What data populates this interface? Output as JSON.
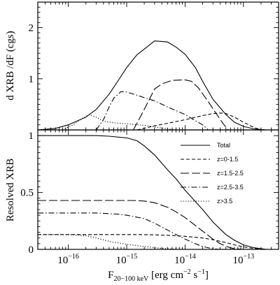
{
  "chart_data": [
    {
      "panel": "top",
      "type": "line",
      "ylabel": "d XRB /dF (cgs)",
      "xscale": "log",
      "xlim": [
        3e-17,
        4e-13
      ],
      "ylim": [
        0,
        2.5
      ],
      "yticks": [
        {
          "v": 1,
          "label": "1"
        },
        {
          "v": 2,
          "label": "2"
        }
      ],
      "series": [
        {
          "name": "Total",
          "dash": "solid",
          "points": [
            [
              3e-17,
              0.0
            ],
            [
              6e-17,
              0.03
            ],
            [
              1e-16,
              0.1
            ],
            [
              2e-16,
              0.25
            ],
            [
              3e-16,
              0.4
            ],
            [
              5e-16,
              0.7
            ],
            [
              7e-16,
              0.95
            ],
            [
              1e-15,
              1.22
            ],
            [
              1.5e-15,
              1.47
            ],
            [
              2e-15,
              1.58
            ],
            [
              3e-15,
              1.74
            ],
            [
              5e-15,
              1.72
            ],
            [
              7e-15,
              1.62
            ],
            [
              1e-14,
              1.48
            ],
            [
              1.5e-14,
              1.22
            ],
            [
              2e-14,
              0.95
            ],
            [
              3e-14,
              0.6
            ],
            [
              5e-14,
              0.3
            ],
            [
              7e-14,
              0.15
            ],
            [
              1e-13,
              0.07
            ],
            [
              1.5e-13,
              0.02
            ],
            [
              2.5e-13,
              0.0
            ]
          ]
        },
        {
          "name": "z=0-1.5",
          "dash": "short",
          "points": [
            [
              1.5e-15,
              0.0
            ],
            [
              3e-15,
              0.08
            ],
            [
              5e-15,
              0.13
            ],
            [
              1e-14,
              0.2
            ],
            [
              2e-14,
              0.28
            ],
            [
              3e-14,
              0.32
            ],
            [
              4e-14,
              0.33
            ],
            [
              5e-14,
              0.32
            ],
            [
              7e-14,
              0.25
            ],
            [
              1e-13,
              0.15
            ],
            [
              1.5e-13,
              0.05
            ],
            [
              2e-13,
              0.0
            ]
          ]
        },
        {
          "name": "z=1.5-2.5",
          "dash": "long",
          "points": [
            [
              1.3e-15,
              0.0
            ],
            [
              1.8e-15,
              0.3
            ],
            [
              2.5e-15,
              0.62
            ],
            [
              3e-15,
              0.8
            ],
            [
              4e-15,
              0.9
            ],
            [
              6e-15,
              0.97
            ],
            [
              1e-14,
              0.98
            ],
            [
              1.3e-14,
              0.95
            ],
            [
              1.7e-14,
              0.82
            ],
            [
              2.5e-14,
              0.55
            ],
            [
              3.5e-14,
              0.3
            ],
            [
              4.5e-14,
              0.12
            ],
            [
              5.5e-14,
              0.0
            ]
          ]
        },
        {
          "name": "z=2.5-3.5",
          "dash": "dashdot",
          "points": [
            [
              3e-16,
              0.0
            ],
            [
              4e-16,
              0.2
            ],
            [
              5e-16,
              0.45
            ],
            [
              6e-16,
              0.62
            ],
            [
              8e-16,
              0.75
            ],
            [
              1e-15,
              0.74
            ],
            [
              1.5e-15,
              0.68
            ],
            [
              2e-15,
              0.63
            ],
            [
              3e-15,
              0.57
            ],
            [
              5e-15,
              0.45
            ],
            [
              1e-14,
              0.3
            ],
            [
              1.5e-14,
              0.18
            ],
            [
              2e-14,
              0.1
            ],
            [
              2.5e-14,
              0.0
            ]
          ]
        },
        {
          "name": "z>3.5",
          "dash": "dotted",
          "points": [
            [
              8e-17,
              0.0
            ],
            [
              1.2e-16,
              0.1
            ],
            [
              1.7e-16,
              0.22
            ],
            [
              2.3e-16,
              0.3
            ],
            [
              3e-16,
              0.25
            ],
            [
              4e-16,
              0.17
            ],
            [
              6e-16,
              0.14
            ],
            [
              1e-15,
              0.12
            ],
            [
              2e-15,
              0.09
            ],
            [
              3e-15,
              0.06
            ],
            [
              5e-15,
              0.02
            ],
            [
              7e-15,
              0.0
            ]
          ]
        }
      ]
    },
    {
      "panel": "bottom",
      "type": "line",
      "ylabel": "Resolved XRB",
      "xlabel_main": "F",
      "xlabel_sub": "20−100 keV",
      "xlabel_units": " [erg cm",
      "xlabel_exp1": "−2",
      "xlabel_mid": " s",
      "xlabel_exp2": "−1",
      "xlabel_end": "]",
      "xscale": "log",
      "xlim": [
        3e-17,
        4e-13
      ],
      "ylim": [
        0,
        1.05
      ],
      "yticks": [
        {
          "v": 0,
          "label": "0"
        },
        {
          "v": 0.5,
          "label": "0.5"
        },
        {
          "v": 1,
          "label": "1"
        }
      ],
      "xticks": [
        {
          "v": 1e-16,
          "base": "10",
          "exp": "−16"
        },
        {
          "v": 1e-15,
          "base": "10",
          "exp": "−15"
        },
        {
          "v": 1e-14,
          "base": "10",
          "exp": "−14"
        },
        {
          "v": 1e-13,
          "base": "10",
          "exp": "−13"
        }
      ],
      "legend_position": "right",
      "series": [
        {
          "name": "Total",
          "dash": "solid",
          "points": [
            [
              3e-17,
              1.0
            ],
            [
              3e-16,
              1.0
            ],
            [
              5e-16,
              0.995
            ],
            [
              1e-15,
              0.98
            ],
            [
              1.5e-15,
              0.955
            ],
            [
              2e-15,
              0.91
            ],
            [
              3e-15,
              0.83
            ],
            [
              5e-15,
              0.7
            ],
            [
              7e-15,
              0.62
            ],
            [
              1e-14,
              0.52
            ],
            [
              1.5e-14,
              0.42
            ],
            [
              2e-14,
              0.35
            ],
            [
              3e-14,
              0.24
            ],
            [
              5e-14,
              0.13
            ],
            [
              7e-14,
              0.08
            ],
            [
              1e-13,
              0.04
            ],
            [
              1.5e-13,
              0.015
            ],
            [
              2.5e-13,
              0.0
            ]
          ]
        },
        {
          "name": "z=0-1.5",
          "dash": "short",
          "points": [
            [
              3e-17,
              0.13
            ],
            [
              1.5e-15,
              0.13
            ],
            [
              3e-15,
              0.128
            ],
            [
              5e-15,
              0.124
            ],
            [
              1e-14,
              0.115
            ],
            [
              2e-14,
              0.1
            ],
            [
              3e-14,
              0.085
            ],
            [
              5e-14,
              0.06
            ],
            [
              7e-14,
              0.04
            ],
            [
              1e-13,
              0.022
            ],
            [
              1.5e-13,
              0.008
            ],
            [
              2.5e-13,
              0.0
            ]
          ]
        },
        {
          "name": "z=1.5-2.5",
          "dash": "long",
          "points": [
            [
              3e-17,
              0.43
            ],
            [
              1.3e-15,
              0.43
            ],
            [
              2e-15,
              0.425
            ],
            [
              3e-15,
              0.41
            ],
            [
              5e-15,
              0.37
            ],
            [
              7e-15,
              0.33
            ],
            [
              1e-14,
              0.28
            ],
            [
              1.5e-14,
              0.21
            ],
            [
              2e-14,
              0.16
            ],
            [
              3e-14,
              0.09
            ],
            [
              4e-14,
              0.05
            ],
            [
              5.5e-14,
              0.02
            ],
            [
              7e-14,
              0.005
            ],
            [
              1e-13,
              0.0
            ]
          ]
        },
        {
          "name": "z=2.5-3.5",
          "dash": "dashdot",
          "points": [
            [
              3e-17,
              0.32
            ],
            [
              3e-16,
              0.32
            ],
            [
              7e-16,
              0.31
            ],
            [
              1e-15,
              0.3
            ],
            [
              2e-15,
              0.27
            ],
            [
              3e-15,
              0.23
            ],
            [
              5e-15,
              0.17
            ],
            [
              7e-15,
              0.13
            ],
            [
              1e-14,
              0.09
            ],
            [
              1.5e-14,
              0.05
            ],
            [
              2e-14,
              0.025
            ],
            [
              3e-14,
              0.005
            ],
            [
              4e-14,
              0.0
            ]
          ]
        },
        {
          "name": "z>3.5",
          "dash": "dotted",
          "points": [
            [
              3e-17,
              0.13
            ],
            [
              1e-16,
              0.13
            ],
            [
              2e-16,
              0.12
            ],
            [
              3e-16,
              0.1
            ],
            [
              5e-16,
              0.07
            ],
            [
              1e-15,
              0.045
            ],
            [
              2e-15,
              0.025
            ],
            [
              3e-15,
              0.015
            ],
            [
              5e-15,
              0.005
            ],
            [
              8e-15,
              0.0
            ]
          ]
        }
      ]
    }
  ]
}
